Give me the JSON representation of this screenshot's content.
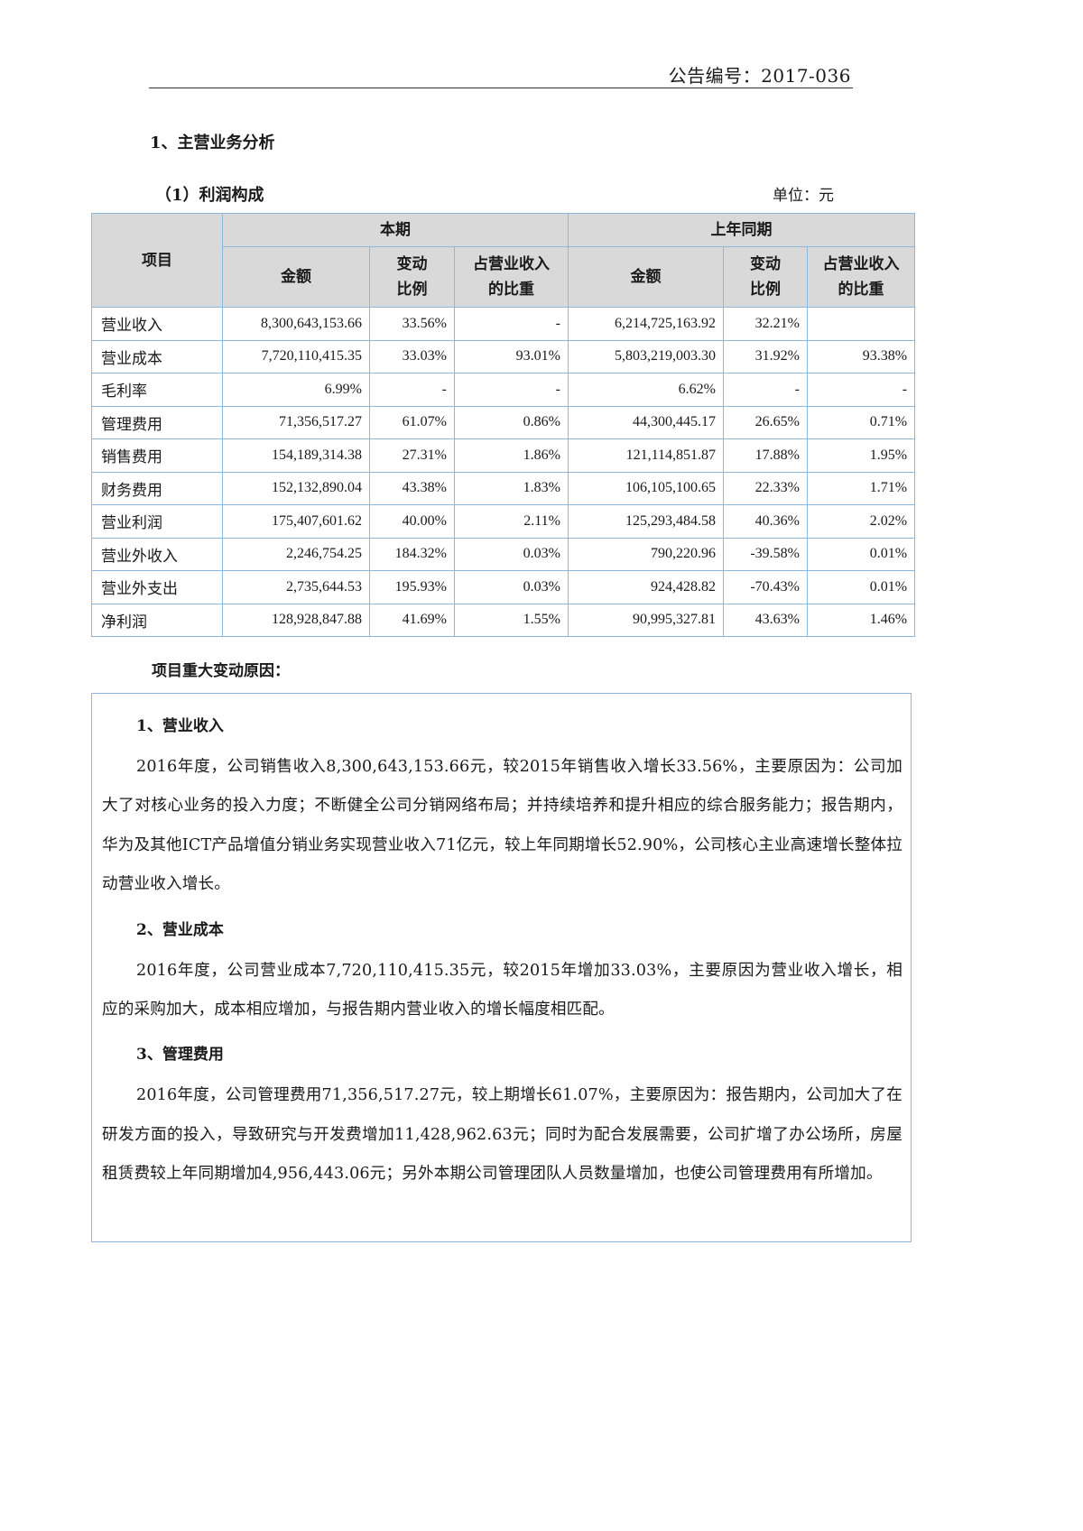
{
  "header": {
    "announcement_no": "公告编号：2017-036"
  },
  "section_title": "1、主营业务分析",
  "table_title": "（1）利润构成",
  "unit_label": "单位：元",
  "table": {
    "col_item": "项目",
    "group_current": "本期",
    "group_prior": "上年同期",
    "col_amount": "金额",
    "col_change_1": "变动",
    "col_change_2": "比例",
    "col_share_1": "占营业收入",
    "col_share_2": "的比重",
    "rows": [
      {
        "item": "营业收入",
        "cur_amount": "8,300,643,153.66",
        "cur_change": "33.56%",
        "cur_share": "-",
        "prior_amount": "6,214,725,163.92",
        "prior_change": "32.21%",
        "prior_share": ""
      },
      {
        "item": "营业成本",
        "cur_amount": "7,720,110,415.35",
        "cur_change": "33.03%",
        "cur_share": "93.01%",
        "prior_amount": "5,803,219,003.30",
        "prior_change": "31.92%",
        "prior_share": "93.38%"
      },
      {
        "item": "毛利率",
        "cur_amount": "6.99%",
        "cur_change": "-",
        "cur_share": "-",
        "prior_amount": "6.62%",
        "prior_change": "-",
        "prior_share": "-"
      },
      {
        "item": "管理费用",
        "cur_amount": "71,356,517.27",
        "cur_change": "61.07%",
        "cur_share": "0.86%",
        "prior_amount": "44,300,445.17",
        "prior_change": "26.65%",
        "prior_share": "0.71%"
      },
      {
        "item": "销售费用",
        "cur_amount": "154,189,314.38",
        "cur_change": "27.31%",
        "cur_share": "1.86%",
        "prior_amount": "121,114,851.87",
        "prior_change": "17.88%",
        "prior_share": "1.95%"
      },
      {
        "item": "财务费用",
        "cur_amount": "152,132,890.04",
        "cur_change": "43.38%",
        "cur_share": "1.83%",
        "prior_amount": "106,105,100.65",
        "prior_change": "22.33%",
        "prior_share": "1.71%"
      },
      {
        "item": "营业利润",
        "cur_amount": "175,407,601.62",
        "cur_change": "40.00%",
        "cur_share": "2.11%",
        "prior_amount": "125,293,484.58",
        "prior_change": "40.36%",
        "prior_share": "2.02%"
      },
      {
        "item": "营业外收入",
        "cur_amount": "2,246,754.25",
        "cur_change": "184.32%",
        "cur_share": "0.03%",
        "prior_amount": "790,220.96",
        "prior_change": "-39.58%",
        "prior_share": "0.01%"
      },
      {
        "item": "营业外支出",
        "cur_amount": "2,735,644.53",
        "cur_change": "195.93%",
        "cur_share": "0.03%",
        "prior_amount": "924,428.82",
        "prior_change": "-70.43%",
        "prior_share": "0.01%"
      },
      {
        "item": "净利润",
        "cur_amount": "128,928,847.88",
        "cur_change": "41.69%",
        "cur_share": "1.55%",
        "prior_amount": "90,995,327.81",
        "prior_change": "43.63%",
        "prior_share": "1.46%"
      }
    ]
  },
  "reasons_title": "项目重大变动原因：",
  "reasons": [
    {
      "heading": "1、营业收入",
      "text": "2016年度，公司销售收入8,300,643,153.66元，较2015年销售收入增长33.56%，主要原因为：公司加大了对核心业务的投入力度；不断健全公司分销网络布局；并持续培养和提升相应的综合服务能力；报告期内，华为及其他ICT产品增值分销业务实现营业收入71亿元，较上年同期增长52.90%，公司核心主业高速增长整体拉动营业收入增长。"
    },
    {
      "heading": "2、营业成本",
      "text": "2016年度，公司营业成本7,720,110,415.35元，较2015年增加33.03%，主要原因为营业收入增长，相应的采购加大，成本相应增加，与报告期内营业收入的增长幅度相匹配。"
    },
    {
      "heading": "3、管理费用",
      "text": "2016年度，公司管理费用71,356,517.27元，较上期增长61.07%，主要原因为：报告期内，公司加大了在研发方面的投入，导致研究与开发费增加11,428,962.63元；同时为配合发展需要，公司扩增了办公场所，房屋租赁费较上年同期增加4,956,443.06元；另外本期公司管理团队人员数量增加，也使公司管理费用有所增加。"
    }
  ]
}
